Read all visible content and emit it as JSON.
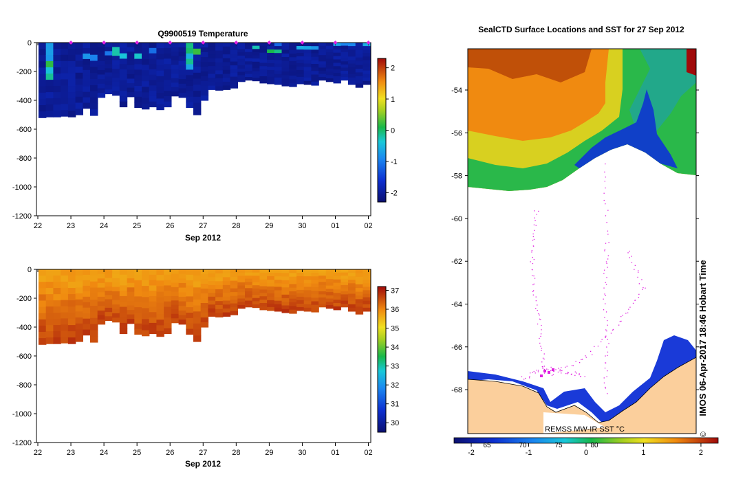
{
  "chart_data": [
    {
      "type": "heatmap",
      "title": "Q9900519  Temperature",
      "xlabel": "Sep 2012",
      "ylabel": "",
      "x_ticks": [
        "22",
        "23",
        "24",
        "25",
        "26",
        "27",
        "28",
        "29",
        "30",
        "01",
        "02"
      ],
      "y_ticks": [
        0,
        -200,
        -400,
        -600,
        -800,
        -1000,
        -1200
      ],
      "ylim": [
        -1200,
        0
      ],
      "colorbar": {
        "ticks": [
          2,
          1,
          0,
          -1,
          -2
        ],
        "range": [
          -2.3,
          2.3
        ]
      },
      "profile_markers": [
        "23",
        "24",
        "25",
        "26",
        "27",
        "28",
        "29",
        "30",
        "01",
        "02"
      ]
    },
    {
      "type": "heatmap",
      "title": "",
      "xlabel": "Sep 2012",
      "ylabel": "",
      "x_ticks": [
        "22",
        "23",
        "24",
        "25",
        "26",
        "27",
        "28",
        "29",
        "30",
        "01",
        "02"
      ],
      "y_ticks": [
        0,
        -200,
        -400,
        -600,
        -800,
        -1000,
        -1200
      ],
      "ylim": [
        -1200,
        0
      ],
      "colorbar": {
        "ticks": [
          37,
          36,
          35,
          34,
          33,
          32,
          31,
          30
        ],
        "range": [
          29.5,
          37.2
        ]
      }
    },
    {
      "type": "heatmap",
      "title": "SealCTD Surface Locations and SST for 27 Sep 2012",
      "y_ticks": [
        "-54",
        "-56",
        "-58",
        "-60",
        "-62",
        "-64",
        "-66",
        "-68"
      ],
      "colorbar": {
        "ticks": [
          "-2",
          "-1",
          "0",
          "1",
          "2"
        ],
        "secondary_ticks": [
          "65",
          "70",
          "75",
          "80"
        ],
        "range": [
          -2.3,
          2.3
        ]
      },
      "source_label": "REMSS MW-IR SST °C",
      "side_label": "IMOS 06-Apr-2017 18:46 Hobart Time",
      "copyright_symbol": "©"
    }
  ]
}
